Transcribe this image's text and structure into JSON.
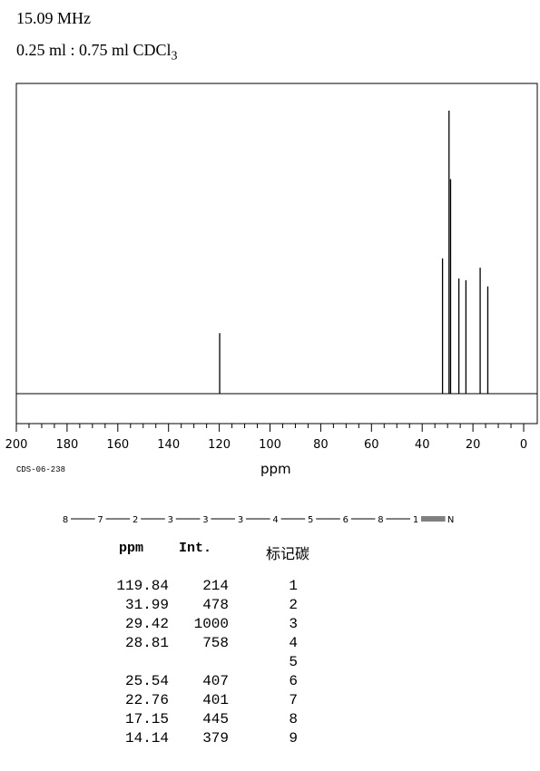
{
  "header": {
    "frequency": "15.09 MHz",
    "solvent_main": "0.25 ml : 0.75 ml CDCl",
    "solvent_sub": "3"
  },
  "footer": {
    "code": "CDS-06-238"
  },
  "chart_data": {
    "type": "line",
    "xlabel": "ppm",
    "xlim": [
      200,
      0
    ],
    "x_ticks": [
      200,
      180,
      160,
      140,
      120,
      100,
      80,
      60,
      40,
      20,
      0
    ],
    "grid": false,
    "legend": "none",
    "peaks": [
      {
        "ppm": 119.84,
        "intensity": 214
      },
      {
        "ppm": 31.99,
        "intensity": 478
      },
      {
        "ppm": 29.42,
        "intensity": 1000
      },
      {
        "ppm": 28.81,
        "intensity": 758
      },
      {
        "ppm": 25.54,
        "intensity": 407
      },
      {
        "ppm": 22.76,
        "intensity": 401
      },
      {
        "ppm": 17.15,
        "intensity": 445
      },
      {
        "ppm": 14.14,
        "intensity": 379
      }
    ]
  },
  "structure": {
    "labels": [
      "8",
      "7",
      "2",
      "3",
      "3",
      "3",
      "4",
      "5",
      "6",
      "8",
      "1",
      "N"
    ]
  },
  "table": {
    "headers": {
      "ppm": "ppm",
      "int": "Int.",
      "assign": "标记碳"
    },
    "rows": [
      {
        "ppm": "119.84",
        "int": "214",
        "atom": "1"
      },
      {
        "ppm": "31.99",
        "int": "478",
        "atom": "2"
      },
      {
        "ppm": "29.42",
        "int": "1000",
        "atom": "3"
      },
      {
        "ppm": "28.81",
        "int": "758",
        "atom": "4"
      },
      {
        "ppm": "",
        "int": "",
        "atom": "5"
      },
      {
        "ppm": "25.54",
        "int": "407",
        "atom": "6"
      },
      {
        "ppm": "22.76",
        "int": "401",
        "atom": "7"
      },
      {
        "ppm": "17.15",
        "int": "445",
        "atom": "8"
      },
      {
        "ppm": "14.14",
        "int": "379",
        "atom": "9"
      }
    ]
  }
}
